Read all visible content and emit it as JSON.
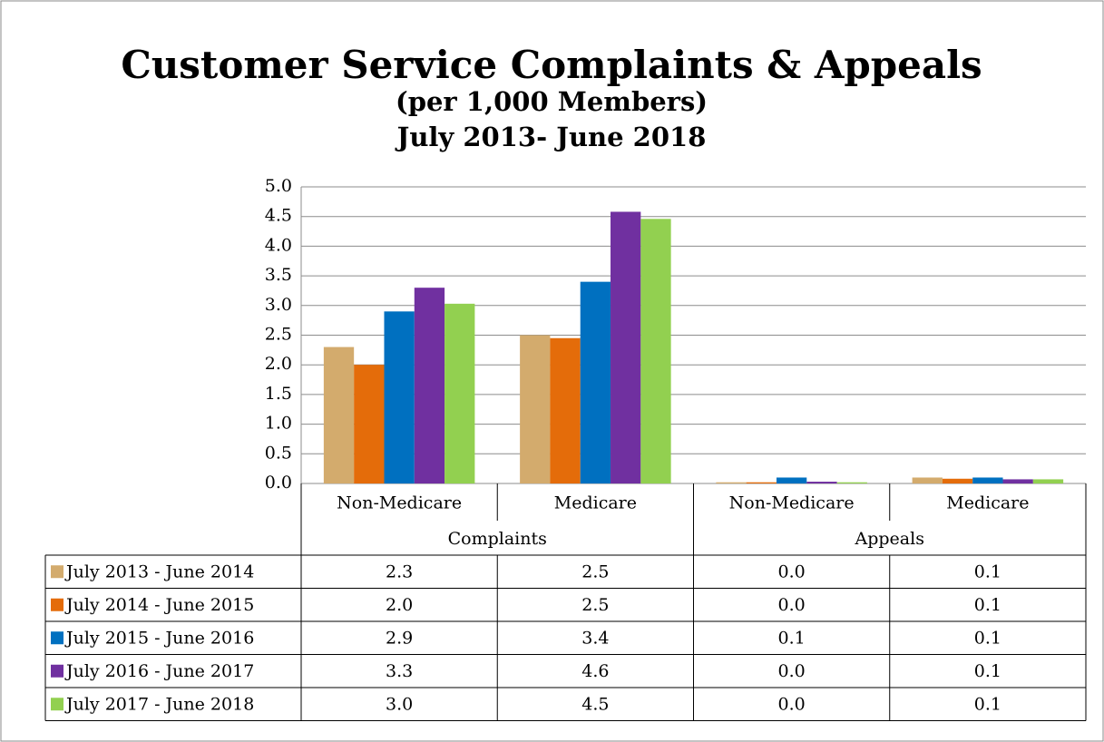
{
  "chart_data": {
    "type": "bar",
    "title": "Customer Service Complaints & Appeals",
    "subtitle": [
      "(per 1,000 Members)",
      "July 2013- June 2018"
    ],
    "groups": [
      {
        "name": "Complaints",
        "categories": [
          "Non-Medicare",
          "Medicare"
        ]
      },
      {
        "name": "Appeals",
        "categories": [
          "Non-Medicare",
          "Medicare"
        ]
      }
    ],
    "series": [
      {
        "name": "July 2013 - June 2014",
        "color": "#d3ab6d",
        "values": [
          2.3,
          2.5,
          0.02,
          0.1
        ],
        "value_labels": [
          "2.3",
          "2.5",
          "0.0",
          "0.1"
        ]
      },
      {
        "name": "July 2014 - June 2015",
        "color": "#e46c0a",
        "values": [
          2.0,
          2.45,
          0.02,
          0.08
        ],
        "value_labels": [
          "2.0",
          "2.5",
          "0.0",
          "0.1"
        ]
      },
      {
        "name": "July 2015 - June 2016",
        "color": "#0070c0",
        "values": [
          2.9,
          3.4,
          0.1,
          0.1
        ],
        "value_labels": [
          "2.9",
          "3.4",
          "0.1",
          "0.1"
        ]
      },
      {
        "name": "July 2016 - June 2017",
        "color": "#7030a0",
        "values": [
          3.3,
          4.58,
          0.03,
          0.07
        ],
        "value_labels": [
          "3.3",
          "4.6",
          "0.0",
          "0.1"
        ]
      },
      {
        "name": "July 2017 - June 2018",
        "color": "#92d050",
        "values": [
          3.03,
          4.46,
          0.02,
          0.07
        ],
        "value_labels": [
          "3.0",
          "4.5",
          "0.0",
          "0.1"
        ]
      }
    ],
    "ylim": [
      0,
      5
    ],
    "yticks": [
      {
        "value": 0,
        "label": "0.0"
      },
      0.5,
      {
        "value": 1,
        "label": "1.0"
      },
      1.5,
      {
        "value": 2,
        "label": "2.0"
      },
      2.5,
      {
        "value": 3,
        "label": "3.0"
      },
      3.5,
      {
        "value": 4,
        "label": "4.0"
      },
      4.5,
      {
        "value": 5,
        "label": "5.0"
      }
    ],
    "grid": true
  }
}
